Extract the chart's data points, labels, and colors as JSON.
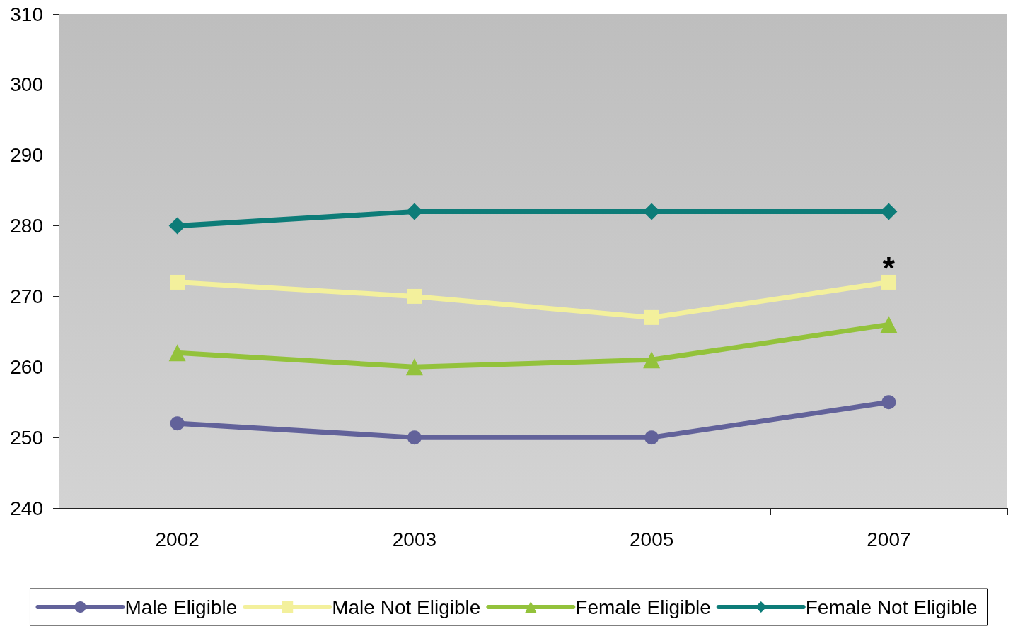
{
  "chart_data": {
    "type": "line",
    "categories": [
      "2002",
      "2003",
      "2005",
      "2007"
    ],
    "series": [
      {
        "name": "Male Eligible",
        "color": "#62629a",
        "marker": "circle",
        "values": [
          252,
          250,
          250,
          255
        ]
      },
      {
        "name": "Male Not Eligible",
        "color": "#f3f09c",
        "marker": "square",
        "values": [
          272,
          270,
          267,
          272
        ]
      },
      {
        "name": "Female Eligible",
        "color": "#93c23b",
        "marker": "triangle",
        "values": [
          262,
          260,
          261,
          266
        ]
      },
      {
        "name": "Female Not Eligible",
        "color": "#0d7c78",
        "marker": "diamond",
        "values": [
          280,
          282,
          282,
          282
        ]
      }
    ],
    "ylim": [
      240,
      310
    ],
    "yticks": [
      240,
      250,
      260,
      270,
      280,
      290,
      300,
      310
    ],
    "grid": false,
    "legend": "bottom",
    "line_style": "solid",
    "annotations": [
      {
        "text": "*",
        "x": "2007",
        "y": 272
      }
    ]
  }
}
